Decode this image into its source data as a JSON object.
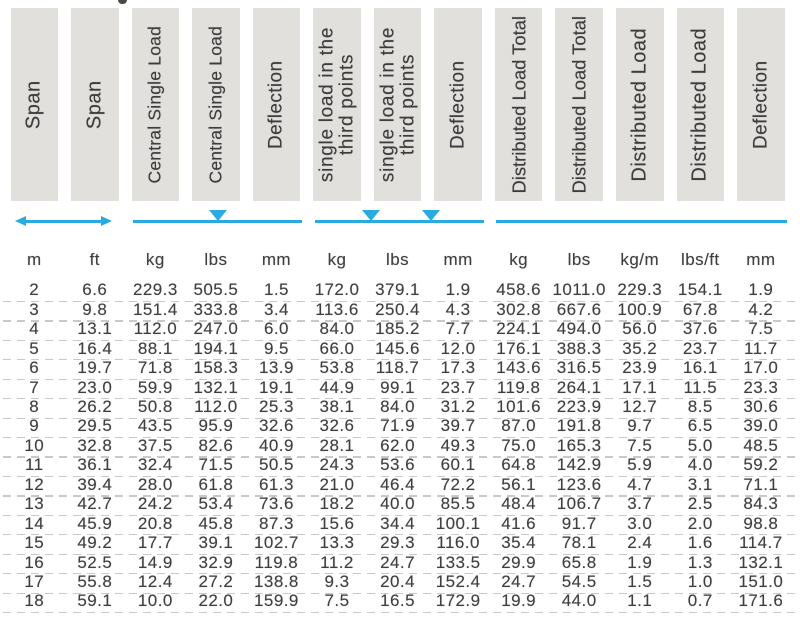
{
  "colors": {
    "accent_cyan": "#29abe2",
    "header_box_gray": "#e1e0dd",
    "text_dark": "#3c3c3c",
    "dash_gray": "#c9c9c9"
  },
  "columns": [
    {
      "id": "span-m",
      "label": "Span",
      "unit": "m"
    },
    {
      "id": "span-ft",
      "label": "Span",
      "unit": "ft"
    },
    {
      "id": "central-single-load-kg",
      "label": "Central Single Load",
      "unit": "kg"
    },
    {
      "id": "central-single-load-lbs",
      "label": "Central Single Load",
      "unit": "lbs"
    },
    {
      "id": "deflection-central-mm",
      "label": "Deflection",
      "unit": "mm"
    },
    {
      "id": "third-point-load-kg",
      "label": "single load in the\nthird points",
      "unit": "kg"
    },
    {
      "id": "third-point-load-lbs",
      "label": "single load in the\nthird points",
      "unit": "lbs"
    },
    {
      "id": "deflection-third-mm",
      "label": "Deflection",
      "unit": "mm"
    },
    {
      "id": "distributed-load-total-kg",
      "label": "Distributed Load Total",
      "unit": "kg"
    },
    {
      "id": "distributed-load-total-lbs",
      "label": "Distributed Load Total",
      "unit": "lbs"
    },
    {
      "id": "distributed-load-kgm",
      "label": "Distributed Load",
      "unit": "kg/m"
    },
    {
      "id": "distributed-load-lbsft",
      "label": "Distributed Load",
      "unit": "lbs/ft"
    },
    {
      "id": "deflection-distributed-mm",
      "label": "Deflection",
      "unit": "mm"
    }
  ],
  "load_diagrams": [
    {
      "type": "double-arrow",
      "col_start": 0,
      "col_end": 1
    },
    {
      "type": "beam",
      "col_start": 2,
      "col_end": 4,
      "load_positions": [
        0.5
      ]
    },
    {
      "type": "beam",
      "col_start": 5,
      "col_end": 7,
      "load_positions": [
        0.333,
        0.685
      ]
    },
    {
      "type": "beam",
      "col_start": 8,
      "col_end": 12,
      "load_positions": []
    }
  ],
  "rows": [
    [
      "2",
      "6.6",
      "229.3",
      "505.5",
      "1.5",
      "172.0",
      "379.1",
      "1.9",
      "458.6",
      "1011.0",
      "229.3",
      "154.1",
      "1.9"
    ],
    [
      "3",
      "9.8",
      "151.4",
      "333.8",
      "3.4",
      "113.6",
      "250.4",
      "4.3",
      "302.8",
      "667.6",
      "100.9",
      "67.8",
      "4.2"
    ],
    [
      "4",
      "13.1",
      "112.0",
      "247.0",
      "6.0",
      "84.0",
      "185.2",
      "7.7",
      "224.1",
      "494.0",
      "56.0",
      "37.6",
      "7.5"
    ],
    [
      "5",
      "16.4",
      "88.1",
      "194.1",
      "9.5",
      "66.0",
      "145.6",
      "12.0",
      "176.1",
      "388.3",
      "35.2",
      "23.7",
      "11.7"
    ],
    [
      "6",
      "19.7",
      "71.8",
      "158.3",
      "13.9",
      "53.8",
      "118.7",
      "17.3",
      "143.6",
      "316.5",
      "23.9",
      "16.1",
      "17.0"
    ],
    [
      "7",
      "23.0",
      "59.9",
      "132.1",
      "19.1",
      "44.9",
      "99.1",
      "23.7",
      "119.8",
      "264.1",
      "17.1",
      "11.5",
      "23.3"
    ],
    [
      "8",
      "26.2",
      "50.8",
      "112.0",
      "25.3",
      "38.1",
      "84.0",
      "31.2",
      "101.6",
      "223.9",
      "12.7",
      "8.5",
      "30.6"
    ],
    [
      "9",
      "29.5",
      "43.5",
      "95.9",
      "32.6",
      "32.6",
      "71.9",
      "39.7",
      "87.0",
      "191.8",
      "9.7",
      "6.5",
      "39.0"
    ],
    [
      "10",
      "32.8",
      "37.5",
      "82.6",
      "40.9",
      "28.1",
      "62.0",
      "49.3",
      "75.0",
      "165.3",
      "7.5",
      "5.0",
      "48.5"
    ],
    [
      "11",
      "36.1",
      "32.4",
      "71.5",
      "50.5",
      "24.3",
      "53.6",
      "60.1",
      "64.8",
      "142.9",
      "5.9",
      "4.0",
      "59.2"
    ],
    [
      "12",
      "39.4",
      "28.0",
      "61.8",
      "61.3",
      "21.0",
      "46.4",
      "72.2",
      "56.1",
      "123.6",
      "4.7",
      "3.1",
      "71.1"
    ],
    [
      "13",
      "42.7",
      "24.2",
      "53.4",
      "73.6",
      "18.2",
      "40.0",
      "85.5",
      "48.4",
      "106.7",
      "3.7",
      "2.5",
      "84.3"
    ],
    [
      "14",
      "45.9",
      "20.8",
      "45.8",
      "87.3",
      "15.6",
      "34.4",
      "100.1",
      "41.6",
      "91.7",
      "3.0",
      "2.0",
      "98.8"
    ],
    [
      "15",
      "49.2",
      "17.7",
      "39.1",
      "102.7",
      "13.3",
      "29.3",
      "116.0",
      "35.4",
      "78.1",
      "2.4",
      "1.6",
      "114.7"
    ],
    [
      "16",
      "52.5",
      "14.9",
      "32.9",
      "119.8",
      "11.2",
      "24.7",
      "133.5",
      "29.9",
      "65.8",
      "1.9",
      "1.3",
      "132.1"
    ],
    [
      "17",
      "55.8",
      "12.4",
      "27.2",
      "138.8",
      "9.3",
      "20.4",
      "152.4",
      "24.7",
      "54.5",
      "1.5",
      "1.0",
      "151.0"
    ],
    [
      "18",
      "59.1",
      "10.0",
      "22.0",
      "159.9",
      "7.5",
      "16.5",
      "172.9",
      "19.9",
      "44.0",
      "1.1",
      "0.7",
      "171.6"
    ]
  ]
}
